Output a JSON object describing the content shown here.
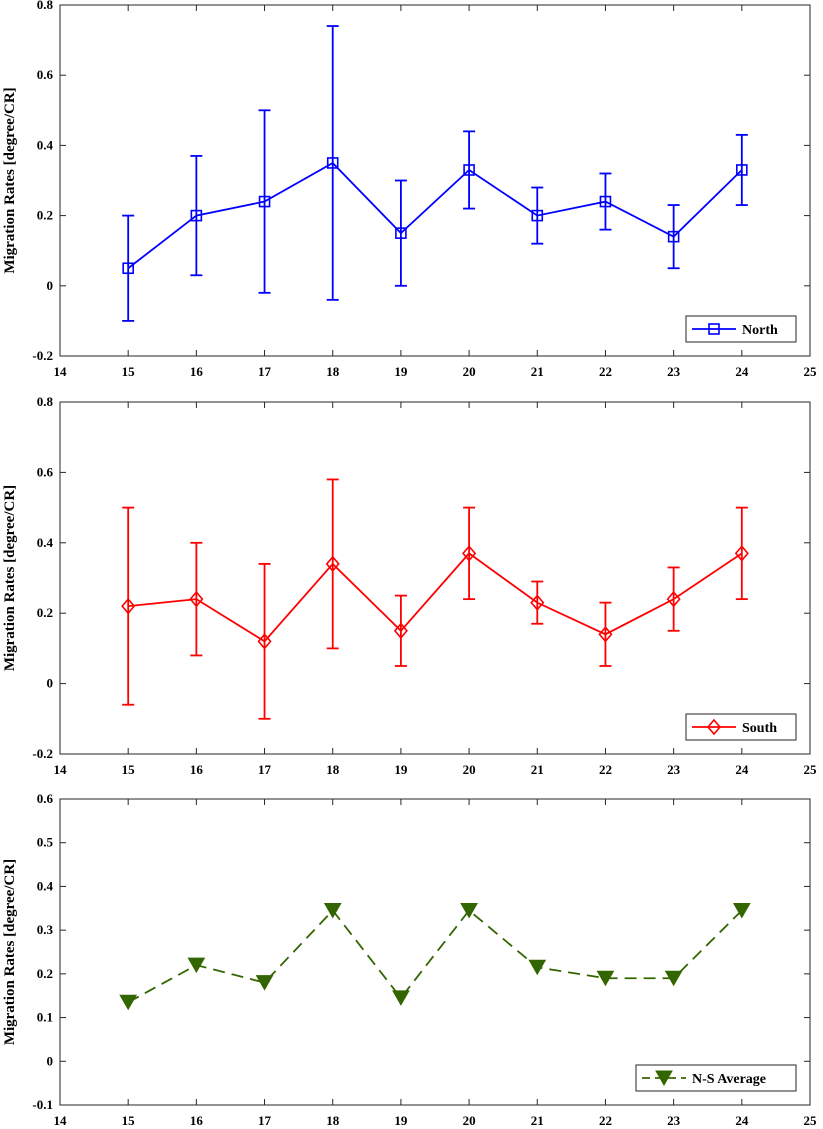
{
  "chart_data": [
    {
      "type": "line",
      "error_bars": true,
      "ylabel": "Migration Rates [degree/CR]",
      "xlim": [
        14,
        25
      ],
      "ylim": [
        -0.2,
        0.8
      ],
      "xticks": [
        14,
        15,
        16,
        17,
        18,
        19,
        20,
        21,
        22,
        23,
        24,
        25
      ],
      "yticks": [
        -0.2,
        0,
        0.2,
        0.4,
        0.6,
        0.8
      ],
      "ytick_labels": [
        "-0.2",
        "0",
        "0.2",
        "0.4",
        "0.6",
        "0.8"
      ],
      "legend_position": "bottom-right",
      "series": [
        {
          "name": "North",
          "color": "#0000ff",
          "marker": "square",
          "line_style": "solid",
          "x": [
            15,
            16,
            17,
            18,
            19,
            20,
            21,
            22,
            23,
            24
          ],
          "values": [
            0.05,
            0.2,
            0.24,
            0.35,
            0.15,
            0.33,
            0.2,
            0.24,
            0.14,
            0.33
          ],
          "lower": [
            -0.1,
            0.03,
            -0.02,
            -0.04,
            0.0,
            0.22,
            0.12,
            0.16,
            0.05,
            0.23
          ],
          "upper": [
            0.2,
            0.37,
            0.5,
            0.74,
            0.3,
            0.44,
            0.28,
            0.32,
            0.23,
            0.43
          ]
        }
      ]
    },
    {
      "type": "line",
      "error_bars": true,
      "ylabel": "Migration Rates [degree/CR]",
      "xlim": [
        14,
        25
      ],
      "ylim": [
        -0.2,
        0.8
      ],
      "xticks": [
        14,
        15,
        16,
        17,
        18,
        19,
        20,
        21,
        22,
        23,
        24,
        25
      ],
      "yticks": [
        -0.2,
        0,
        0.2,
        0.4,
        0.6,
        0.8
      ],
      "ytick_labels": [
        "-0.2",
        "0",
        "0.2",
        "0.4",
        "0.6",
        "0.8"
      ],
      "legend_position": "bottom-right",
      "series": [
        {
          "name": "South",
          "color": "#ff0000",
          "marker": "diamond",
          "line_style": "solid",
          "x": [
            15,
            16,
            17,
            18,
            19,
            20,
            21,
            22,
            23,
            24
          ],
          "values": [
            0.22,
            0.24,
            0.12,
            0.34,
            0.15,
            0.37,
            0.23,
            0.14,
            0.24,
            0.37
          ],
          "lower": [
            -0.06,
            0.08,
            -0.1,
            0.1,
            0.05,
            0.24,
            0.17,
            0.05,
            0.15,
            0.24
          ],
          "upper": [
            0.5,
            0.4,
            0.34,
            0.58,
            0.25,
            0.5,
            0.29,
            0.23,
            0.33,
            0.5
          ]
        }
      ]
    },
    {
      "type": "line",
      "error_bars": false,
      "ylabel": "Migration Rates [degree/CR]",
      "xlim": [
        14,
        25
      ],
      "ylim": [
        -0.1,
        0.6
      ],
      "xticks": [
        14,
        15,
        16,
        17,
        18,
        19,
        20,
        21,
        22,
        23,
        24,
        25
      ],
      "yticks": [
        -0.1,
        0,
        0.1,
        0.2,
        0.3,
        0.4,
        0.5,
        0.6
      ],
      "ytick_labels": [
        "-0.1",
        "0",
        "0.1",
        "0.2",
        "0.3",
        "0.4",
        "0.5",
        "0.6"
      ],
      "legend_position": "bottom-right",
      "series": [
        {
          "name": "N-S Average",
          "color": "#336600",
          "marker": "triangle-down",
          "line_style": "dashed",
          "x": [
            15,
            16,
            17,
            18,
            19,
            20,
            21,
            22,
            23,
            24
          ],
          "values": [
            0.135,
            0.22,
            0.18,
            0.345,
            0.145,
            0.345,
            0.215,
            0.19,
            0.19,
            0.345
          ]
        }
      ]
    }
  ]
}
